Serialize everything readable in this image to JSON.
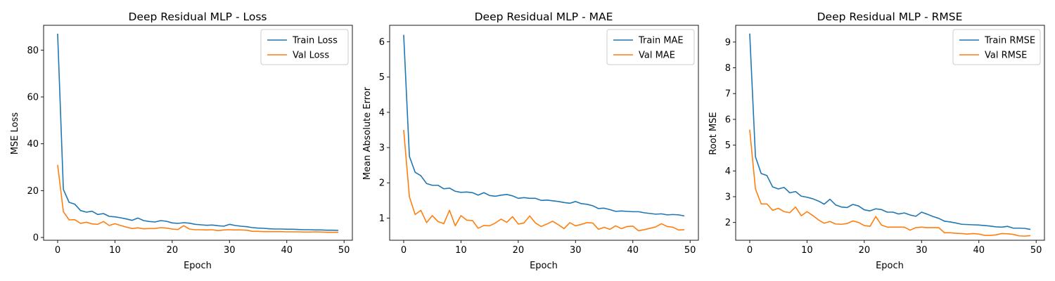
{
  "chart_data": [
    {
      "type": "line",
      "title": "Deep Residual MLP - Loss",
      "xlabel": "Epoch",
      "ylabel": "MSE Loss",
      "xlim": [
        -2.45,
        51.45
      ],
      "ylim": [
        -1.2,
        90.6
      ],
      "xticks": [
        0,
        10,
        20,
        30,
        40,
        50
      ],
      "yticks": [
        0,
        20,
        40,
        60,
        80
      ],
      "legend": "top-right",
      "x": [
        0,
        1,
        2,
        3,
        4,
        5,
        6,
        7,
        8,
        9,
        10,
        11,
        12,
        13,
        14,
        15,
        16,
        17,
        18,
        19,
        20,
        21,
        22,
        23,
        24,
        25,
        26,
        27,
        28,
        29,
        30,
        31,
        32,
        33,
        34,
        35,
        36,
        37,
        38,
        39,
        40,
        41,
        42,
        43,
        44,
        45,
        46,
        47,
        48,
        49
      ],
      "series": [
        {
          "name": "Train Loss",
          "color": "#1f77b4",
          "values": [
            87,
            20.5,
            15,
            14.2,
            11.5,
            10.8,
            11.2,
            9.8,
            10.2,
            9,
            8.8,
            8.4,
            7.9,
            7.3,
            8.3,
            7.2,
            6.8,
            6.6,
            7.2,
            6.9,
            6.2,
            6,
            6.3,
            6.1,
            5.6,
            5.4,
            5.2,
            5.3,
            5,
            4.8,
            5.6,
            5.1,
            4.8,
            4.6,
            4.2,
            4,
            3.9,
            3.7,
            3.6,
            3.6,
            3.5,
            3.5,
            3.4,
            3.3,
            3.3,
            3.2,
            3.2,
            3.1,
            3.1,
            3
          ]
        },
        {
          "name": "Val Loss",
          "color": "#ff7f0e",
          "values": [
            31,
            11,
            7.5,
            7.6,
            6,
            6.5,
            5.8,
            5.6,
            6.8,
            5.1,
            5.9,
            5.1,
            4.4,
            3.8,
            4.1,
            3.7,
            3.8,
            3.8,
            4.2,
            4,
            3.6,
            3.4,
            5,
            3.6,
            3.3,
            3.3,
            3.2,
            3.3,
            2.9,
            3.2,
            3.3,
            3.2,
            3.2,
            3.1,
            2.6,
            2.6,
            2.5,
            2.5,
            2.5,
            2.5,
            2.4,
            2.4,
            2.4,
            2.3,
            2.3,
            2.4,
            2.3,
            2.2,
            2.2,
            2.2
          ]
        }
      ]
    },
    {
      "type": "line",
      "title": "Deep Residual MLP - MAE",
      "xlabel": "Epoch",
      "ylabel": "Mean Absolute Error",
      "xlim": [
        -2.45,
        51.45
      ],
      "ylim": [
        0.37,
        6.47
      ],
      "xticks": [
        0,
        10,
        20,
        30,
        40,
        50
      ],
      "yticks": [
        1,
        2,
        3,
        4,
        5,
        6
      ],
      "legend": "top-right",
      "x": [
        0,
        1,
        2,
        3,
        4,
        5,
        6,
        7,
        8,
        9,
        10,
        11,
        12,
        13,
        14,
        15,
        16,
        17,
        18,
        19,
        20,
        21,
        22,
        23,
        24,
        25,
        26,
        27,
        28,
        29,
        30,
        31,
        32,
        33,
        34,
        35,
        36,
        37,
        38,
        39,
        40,
        41,
        42,
        43,
        44,
        45,
        46,
        47,
        48,
        49
      ],
      "series": [
        {
          "name": "Train MAE",
          "color": "#1f77b4",
          "values": [
            6.2,
            2.75,
            2.3,
            2.2,
            1.98,
            1.93,
            1.93,
            1.83,
            1.85,
            1.76,
            1.73,
            1.74,
            1.72,
            1.65,
            1.72,
            1.64,
            1.62,
            1.65,
            1.67,
            1.63,
            1.56,
            1.58,
            1.56,
            1.56,
            1.5,
            1.51,
            1.49,
            1.47,
            1.44,
            1.42,
            1.47,
            1.41,
            1.39,
            1.35,
            1.27,
            1.28,
            1.24,
            1.19,
            1.2,
            1.19,
            1.18,
            1.18,
            1.15,
            1.13,
            1.11,
            1.12,
            1.09,
            1.1,
            1.09,
            1.06
          ]
        },
        {
          "name": "Val MAE",
          "color": "#ff7f0e",
          "values": [
            3.5,
            1.6,
            1.1,
            1.22,
            0.87,
            1.07,
            0.9,
            0.84,
            1.22,
            0.78,
            1.07,
            0.94,
            0.93,
            0.71,
            0.79,
            0.78,
            0.86,
            0.97,
            0.88,
            1.04,
            0.83,
            0.86,
            1.06,
            0.86,
            0.76,
            0.83,
            0.91,
            0.81,
            0.7,
            0.87,
            0.78,
            0.82,
            0.87,
            0.86,
            0.68,
            0.74,
            0.68,
            0.78,
            0.7,
            0.76,
            0.77,
            0.64,
            0.67,
            0.71,
            0.75,
            0.84,
            0.76,
            0.74,
            0.66,
            0.67
          ]
        }
      ]
    },
    {
      "type": "line",
      "title": "Deep Residual MLP - RMSE",
      "xlabel": "Epoch",
      "ylabel": "Root MSE",
      "xlim": [
        -2.45,
        51.45
      ],
      "ylim": [
        1.31,
        9.65
      ],
      "xticks": [
        0,
        10,
        20,
        30,
        40,
        50
      ],
      "yticks": [
        2,
        3,
        4,
        5,
        6,
        7,
        8,
        9
      ],
      "legend": "top-right",
      "x": [
        0,
        1,
        2,
        3,
        4,
        5,
        6,
        7,
        8,
        9,
        10,
        11,
        12,
        13,
        14,
        15,
        16,
        17,
        18,
        19,
        20,
        21,
        22,
        23,
        24,
        25,
        26,
        27,
        28,
        29,
        30,
        31,
        32,
        33,
        34,
        35,
        36,
        37,
        38,
        39,
        40,
        41,
        42,
        43,
        44,
        45,
        46,
        47,
        48,
        49
      ],
      "series": [
        {
          "name": "Train RMSE",
          "color": "#1f77b4",
          "values": [
            9.33,
            4.55,
            3.9,
            3.82,
            3.38,
            3.3,
            3.36,
            3.15,
            3.2,
            3.02,
            2.98,
            2.92,
            2.83,
            2.71,
            2.9,
            2.68,
            2.6,
            2.58,
            2.7,
            2.64,
            2.49,
            2.45,
            2.53,
            2.5,
            2.4,
            2.4,
            2.33,
            2.37,
            2.29,
            2.24,
            2.4,
            2.32,
            2.23,
            2.16,
            2.05,
            2.02,
            1.98,
            1.93,
            1.92,
            1.91,
            1.9,
            1.88,
            1.86,
            1.83,
            1.82,
            1.85,
            1.78,
            1.78,
            1.77,
            1.73
          ]
        },
        {
          "name": "Val RMSE",
          "color": "#ff7f0e",
          "values": [
            5.6,
            3.3,
            2.72,
            2.72,
            2.47,
            2.55,
            2.42,
            2.38,
            2.6,
            2.26,
            2.42,
            2.27,
            2.1,
            1.97,
            2.04,
            1.94,
            1.93,
            1.96,
            2.06,
            2,
            1.88,
            1.85,
            2.23,
            1.9,
            1.82,
            1.82,
            1.82,
            1.82,
            1.7,
            1.8,
            1.82,
            1.8,
            1.8,
            1.8,
            1.6,
            1.6,
            1.58,
            1.57,
            1.55,
            1.57,
            1.55,
            1.5,
            1.5,
            1.52,
            1.57,
            1.56,
            1.54,
            1.48,
            1.47,
            1.49
          ]
        }
      ]
    }
  ]
}
